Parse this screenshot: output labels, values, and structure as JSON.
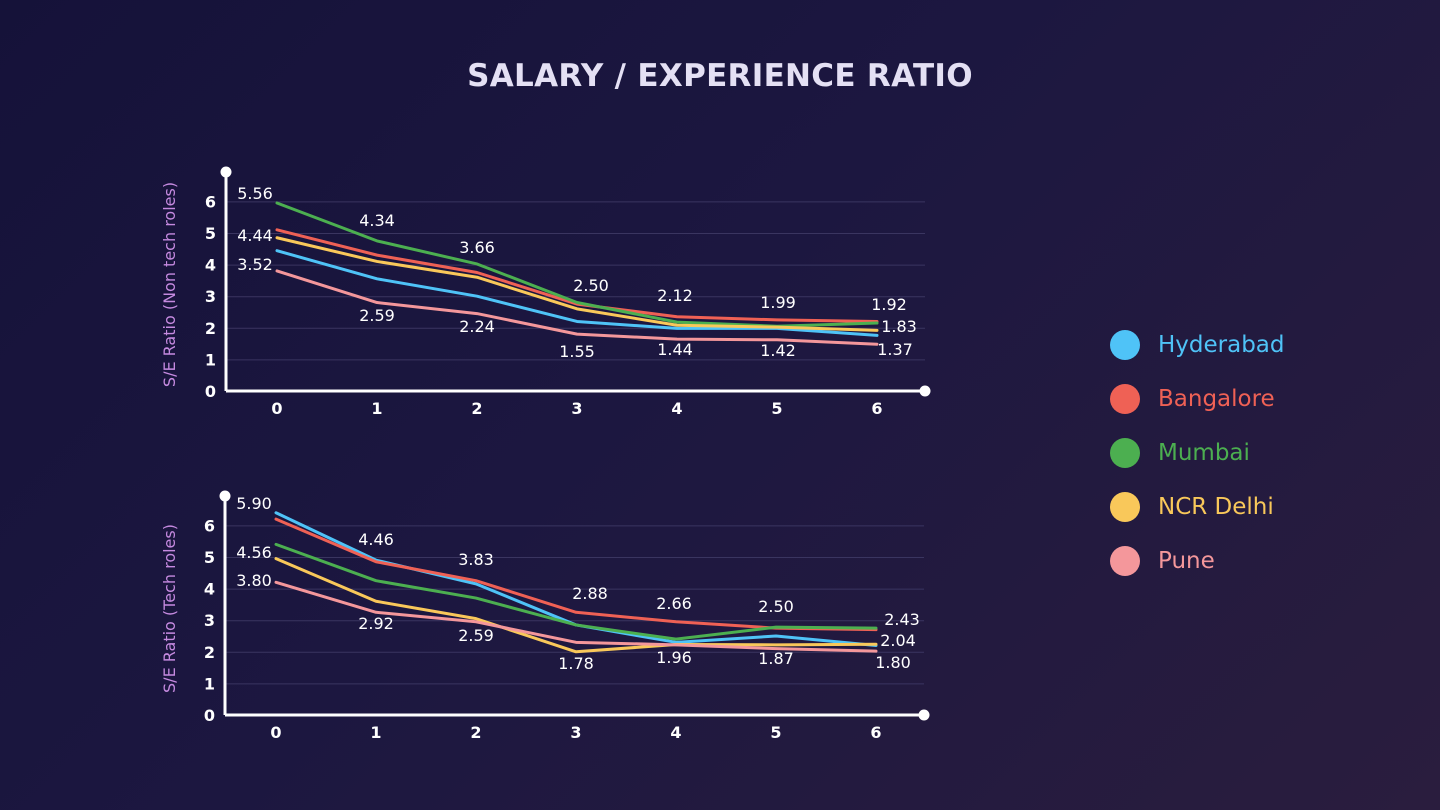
{
  "title": "SALARY / EXPERIENCE RATIO",
  "legend": [
    {
      "name": "Hyderabad",
      "color": "#4fc3f7"
    },
    {
      "name": "Bangalore",
      "color": "#ef6155"
    },
    {
      "name": "Mumbai",
      "color": "#4caf50"
    },
    {
      "name": "NCR Delhi",
      "color": "#f9c85a"
    },
    {
      "name": "Pune",
      "color": "#f4979b"
    }
  ],
  "chart_data": [
    {
      "type": "line",
      "ylabel": "S/E Ratio (Non tech roles)",
      "xlabel": "",
      "x": [
        0,
        1,
        2,
        3,
        4,
        5,
        6
      ],
      "ylim": [
        0,
        7
      ],
      "yticks": [
        0,
        1,
        2,
        3,
        4,
        5,
        6
      ],
      "grid": true,
      "series": [
        {
          "name": "Hyderabad",
          "color": "#4fc3f7",
          "values": [
            4.44,
            3.55,
            3.0,
            2.2,
            1.98,
            1.98,
            1.76
          ]
        },
        {
          "name": "Bangalore",
          "color": "#ef6155",
          "values": [
            5.1,
            4.3,
            3.75,
            2.75,
            2.35,
            2.25,
            2.2
          ]
        },
        {
          "name": "Mumbai",
          "color": "#4caf50",
          "values": [
            5.95,
            4.75,
            4.02,
            2.8,
            2.18,
            2.05,
            2.15
          ]
        },
        {
          "name": "NCR Delhi",
          "color": "#f9c85a",
          "values": [
            4.85,
            4.1,
            3.6,
            2.6,
            2.08,
            2.02,
            1.92
          ]
        },
        {
          "name": "Pune",
          "color": "#f4979b",
          "values": [
            3.8,
            2.8,
            2.45,
            1.8,
            1.64,
            1.62,
            1.48
          ]
        }
      ],
      "annotations": [
        {
          "x": 0,
          "label": "5.56"
        },
        {
          "x": 0,
          "label": "4.44"
        },
        {
          "x": 0,
          "label": "3.52"
        },
        {
          "x": 1,
          "label": "4.34"
        },
        {
          "x": 1,
          "label": "2.59"
        },
        {
          "x": 2,
          "label": "3.66"
        },
        {
          "x": 2,
          "label": "2.24"
        },
        {
          "x": 3,
          "label": "2.50"
        },
        {
          "x": 3,
          "label": "1.55"
        },
        {
          "x": 4,
          "label": "2.12"
        },
        {
          "x": 4,
          "label": "1.44"
        },
        {
          "x": 5,
          "label": "1.99"
        },
        {
          "x": 5,
          "label": "1.42"
        },
        {
          "x": 6,
          "label": "1.92"
        },
        {
          "x": 6,
          "label": "1.83"
        },
        {
          "x": 6,
          "label": "1.37"
        }
      ]
    },
    {
      "type": "line",
      "ylabel": "S/E Ratio (Tech roles)",
      "xlabel": "",
      "x": [
        0,
        1,
        2,
        3,
        4,
        5,
        6
      ],
      "ylim": [
        0,
        7
      ],
      "yticks": [
        0,
        1,
        2,
        3,
        4,
        5,
        6
      ],
      "grid": true,
      "series": [
        {
          "name": "Hyderabad",
          "color": "#4fc3f7",
          "values": [
            6.4,
            4.9,
            4.15,
            2.85,
            2.3,
            2.5,
            2.2
          ]
        },
        {
          "name": "Bangalore",
          "color": "#ef6155",
          "values": [
            6.2,
            4.85,
            4.25,
            3.25,
            2.95,
            2.75,
            2.7
          ]
        },
        {
          "name": "Mumbai",
          "color": "#4caf50",
          "values": [
            5.4,
            4.25,
            3.7,
            2.85,
            2.4,
            2.78,
            2.75
          ]
        },
        {
          "name": "NCR Delhi",
          "color": "#f9c85a",
          "values": [
            4.95,
            3.6,
            3.05,
            2.0,
            2.23,
            2.22,
            2.24
          ]
        },
        {
          "name": "Pune",
          "color": "#f4979b",
          "values": [
            4.2,
            3.25,
            2.95,
            2.3,
            2.22,
            2.1,
            2.02
          ]
        }
      ],
      "annotations": [
        {
          "x": 0,
          "label": "5.90"
        },
        {
          "x": 0,
          "label": "4.56"
        },
        {
          "x": 0,
          "label": "3.80"
        },
        {
          "x": 1,
          "label": "4.46"
        },
        {
          "x": 1,
          "label": "2.92"
        },
        {
          "x": 2,
          "label": "3.83"
        },
        {
          "x": 2,
          "label": "2.59"
        },
        {
          "x": 3,
          "label": "2.88"
        },
        {
          "x": 3,
          "label": "1.78"
        },
        {
          "x": 4,
          "label": "2.66"
        },
        {
          "x": 4,
          "label": "1.96"
        },
        {
          "x": 5,
          "label": "2.50"
        },
        {
          "x": 5,
          "label": "1.87"
        },
        {
          "x": 6,
          "label": "2.43"
        },
        {
          "x": 6,
          "label": "2.04"
        },
        {
          "x": 6,
          "label": "1.80"
        }
      ]
    }
  ]
}
